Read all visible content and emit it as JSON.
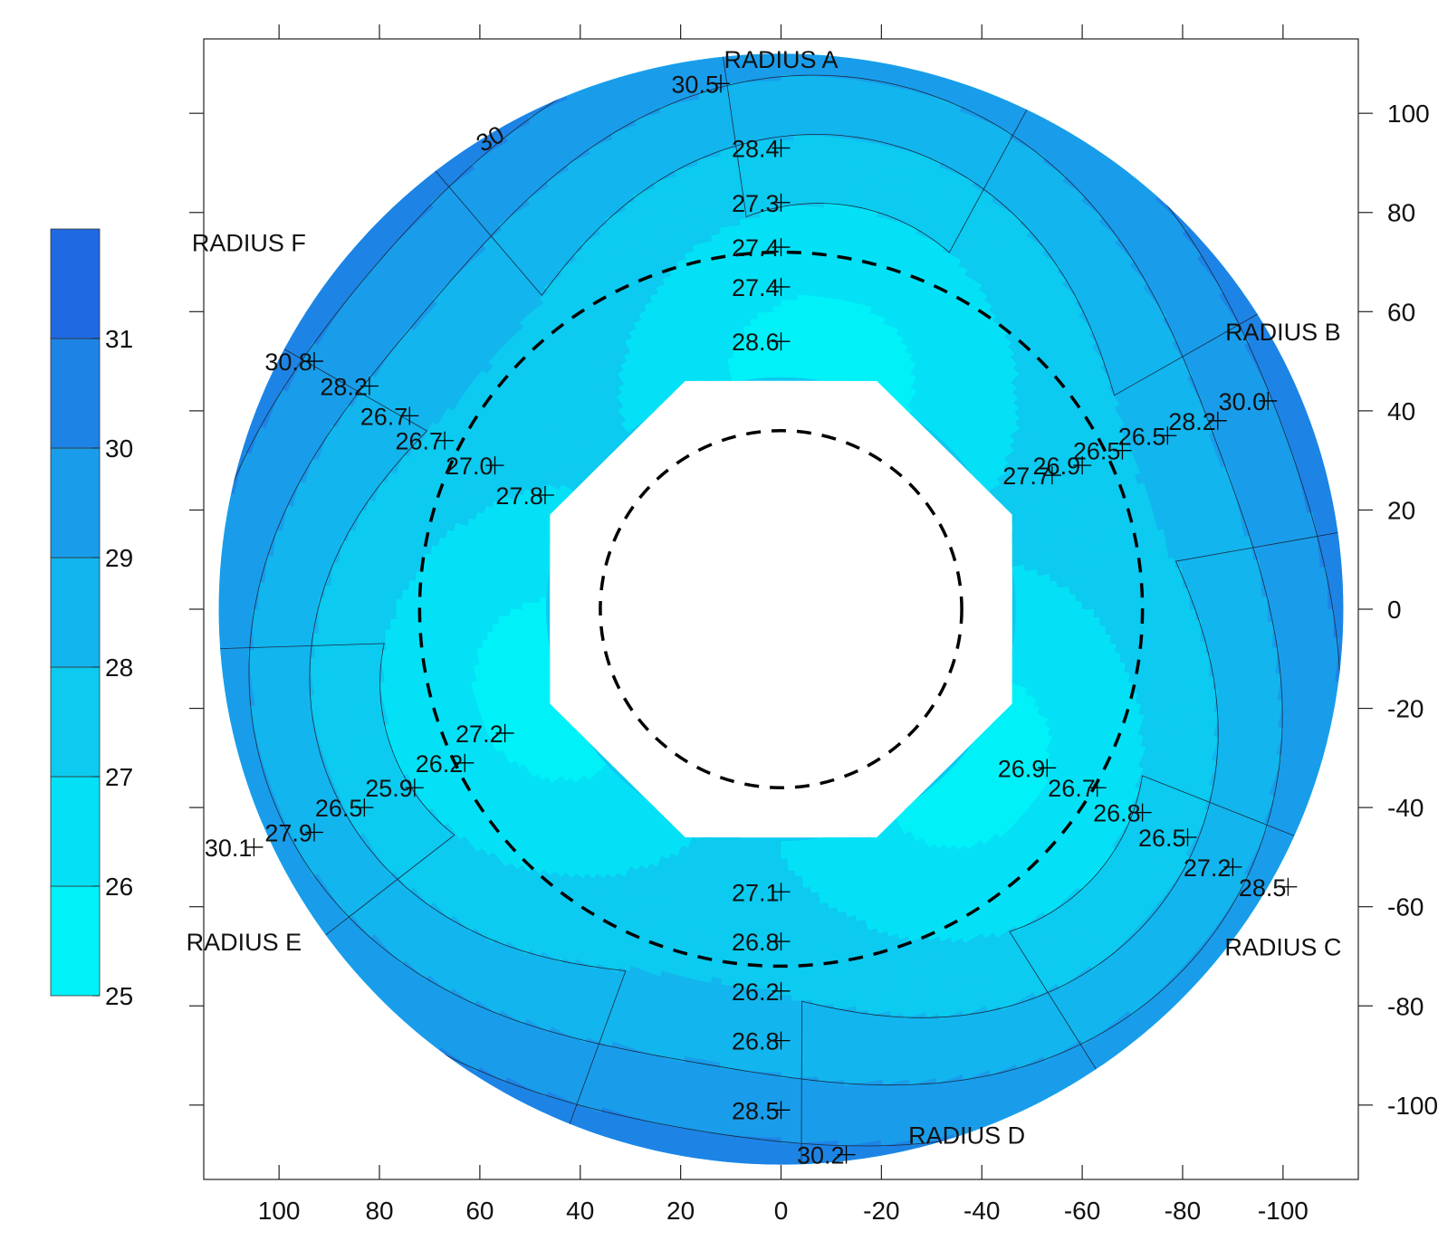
{
  "chart_data": {
    "type": "heatmap",
    "subtype": "filled contour map (annular)",
    "title": "",
    "xlabel": "",
    "ylabel": "",
    "xlim": [
      115,
      -115
    ],
    "ylim": [
      -115,
      115
    ],
    "x_ticks": [
      100,
      80,
      60,
      40,
      20,
      0,
      -20,
      -40,
      -60,
      -80,
      -100
    ],
    "y_ticks": [
      100,
      80,
      60,
      40,
      20,
      0,
      -20,
      -40,
      -60,
      -80,
      -100
    ],
    "x_axis_position": "bottom",
    "y_axis_position": "right",
    "x_reversed": true,
    "grid": false,
    "inner_radius": 47,
    "outer_radius": 112,
    "measurement_circles": [
      36,
      72
    ],
    "color_scale": {
      "levels": [
        25,
        26,
        27,
        28,
        29,
        30,
        31,
        32
      ],
      "tick_labels": [
        25,
        26,
        27,
        28,
        29,
        30,
        31
      ],
      "colors": [
        "#00f2f8",
        "#04e1f6",
        "#0ccaf0",
        "#12b5ee",
        "#199deb",
        "#1d84e6",
        "#1f6ae2"
      ],
      "legend_position": "left"
    },
    "contour_labels": [
      {
        "text": "30",
        "x": 58,
        "y": 95
      }
    ],
    "radius_labels": [
      {
        "text": "RADIUS A",
        "x": 0,
        "y": 111
      },
      {
        "text": "RADIUS B",
        "x": -100,
        "y": 56
      },
      {
        "text": "RADIUS C",
        "x": -100,
        "y": -68
      },
      {
        "text": "RADIUS D",
        "x": -37,
        "y": -106
      },
      {
        "text": "RADIUS E",
        "x": 107,
        "y": -67
      },
      {
        "text": "RADIUS F",
        "x": 106,
        "y": 74
      }
    ],
    "points": [
      {
        "x": 12,
        "y": 106,
        "value": "30.5"
      },
      {
        "x": 0,
        "y": 93,
        "value": "28.4"
      },
      {
        "x": 0,
        "y": 82,
        "value": "27.3"
      },
      {
        "x": 0,
        "y": 73,
        "value": "27.4"
      },
      {
        "x": 0,
        "y": 65,
        "value": "27.4"
      },
      {
        "x": 0,
        "y": 54,
        "value": "28.6"
      },
      {
        "x": -97,
        "y": 42,
        "value": "30.0"
      },
      {
        "x": -87,
        "y": 38,
        "value": "28.2"
      },
      {
        "x": -77,
        "y": 35,
        "value": "26.5"
      },
      {
        "x": -68,
        "y": 32,
        "value": "26.5"
      },
      {
        "x": -60,
        "y": 29,
        "value": "26.9"
      },
      {
        "x": -54,
        "y": 27,
        "value": "27.7"
      },
      {
        "x": -101,
        "y": -56,
        "value": "28.5"
      },
      {
        "x": -90,
        "y": -52,
        "value": "27.2"
      },
      {
        "x": -81,
        "y": -46,
        "value": "26.5"
      },
      {
        "x": -72,
        "y": -41,
        "value": "26.8"
      },
      {
        "x": -63,
        "y": -36,
        "value": "26.7"
      },
      {
        "x": -53,
        "y": -32,
        "value": "26.9"
      },
      {
        "x": -13,
        "y": -110,
        "value": "30.2"
      },
      {
        "x": 0,
        "y": -101,
        "value": "28.5"
      },
      {
        "x": 0,
        "y": -87,
        "value": "26.8"
      },
      {
        "x": 0,
        "y": -77,
        "value": "26.2"
      },
      {
        "x": 0,
        "y": -67,
        "value": "26.8"
      },
      {
        "x": 0,
        "y": -57,
        "value": "27.1"
      },
      {
        "x": 105,
        "y": -48,
        "value": "30.1"
      },
      {
        "x": 93,
        "y": -45,
        "value": "27.9"
      },
      {
        "x": 83,
        "y": -40,
        "value": "26.5"
      },
      {
        "x": 73,
        "y": -36,
        "value": "25.9"
      },
      {
        "x": 63,
        "y": -31,
        "value": "26.2"
      },
      {
        "x": 55,
        "y": -25,
        "value": "27.2"
      },
      {
        "x": 93,
        "y": 50,
        "value": "30.8"
      },
      {
        "x": 82,
        "y": 45,
        "value": "28.2"
      },
      {
        "x": 74,
        "y": 39,
        "value": "26.7"
      },
      {
        "x": 67,
        "y": 34,
        "value": "26.7"
      },
      {
        "x": 57,
        "y": 29,
        "value": "27.0"
      },
      {
        "x": 47,
        "y": 23,
        "value": "27.8"
      }
    ]
  }
}
